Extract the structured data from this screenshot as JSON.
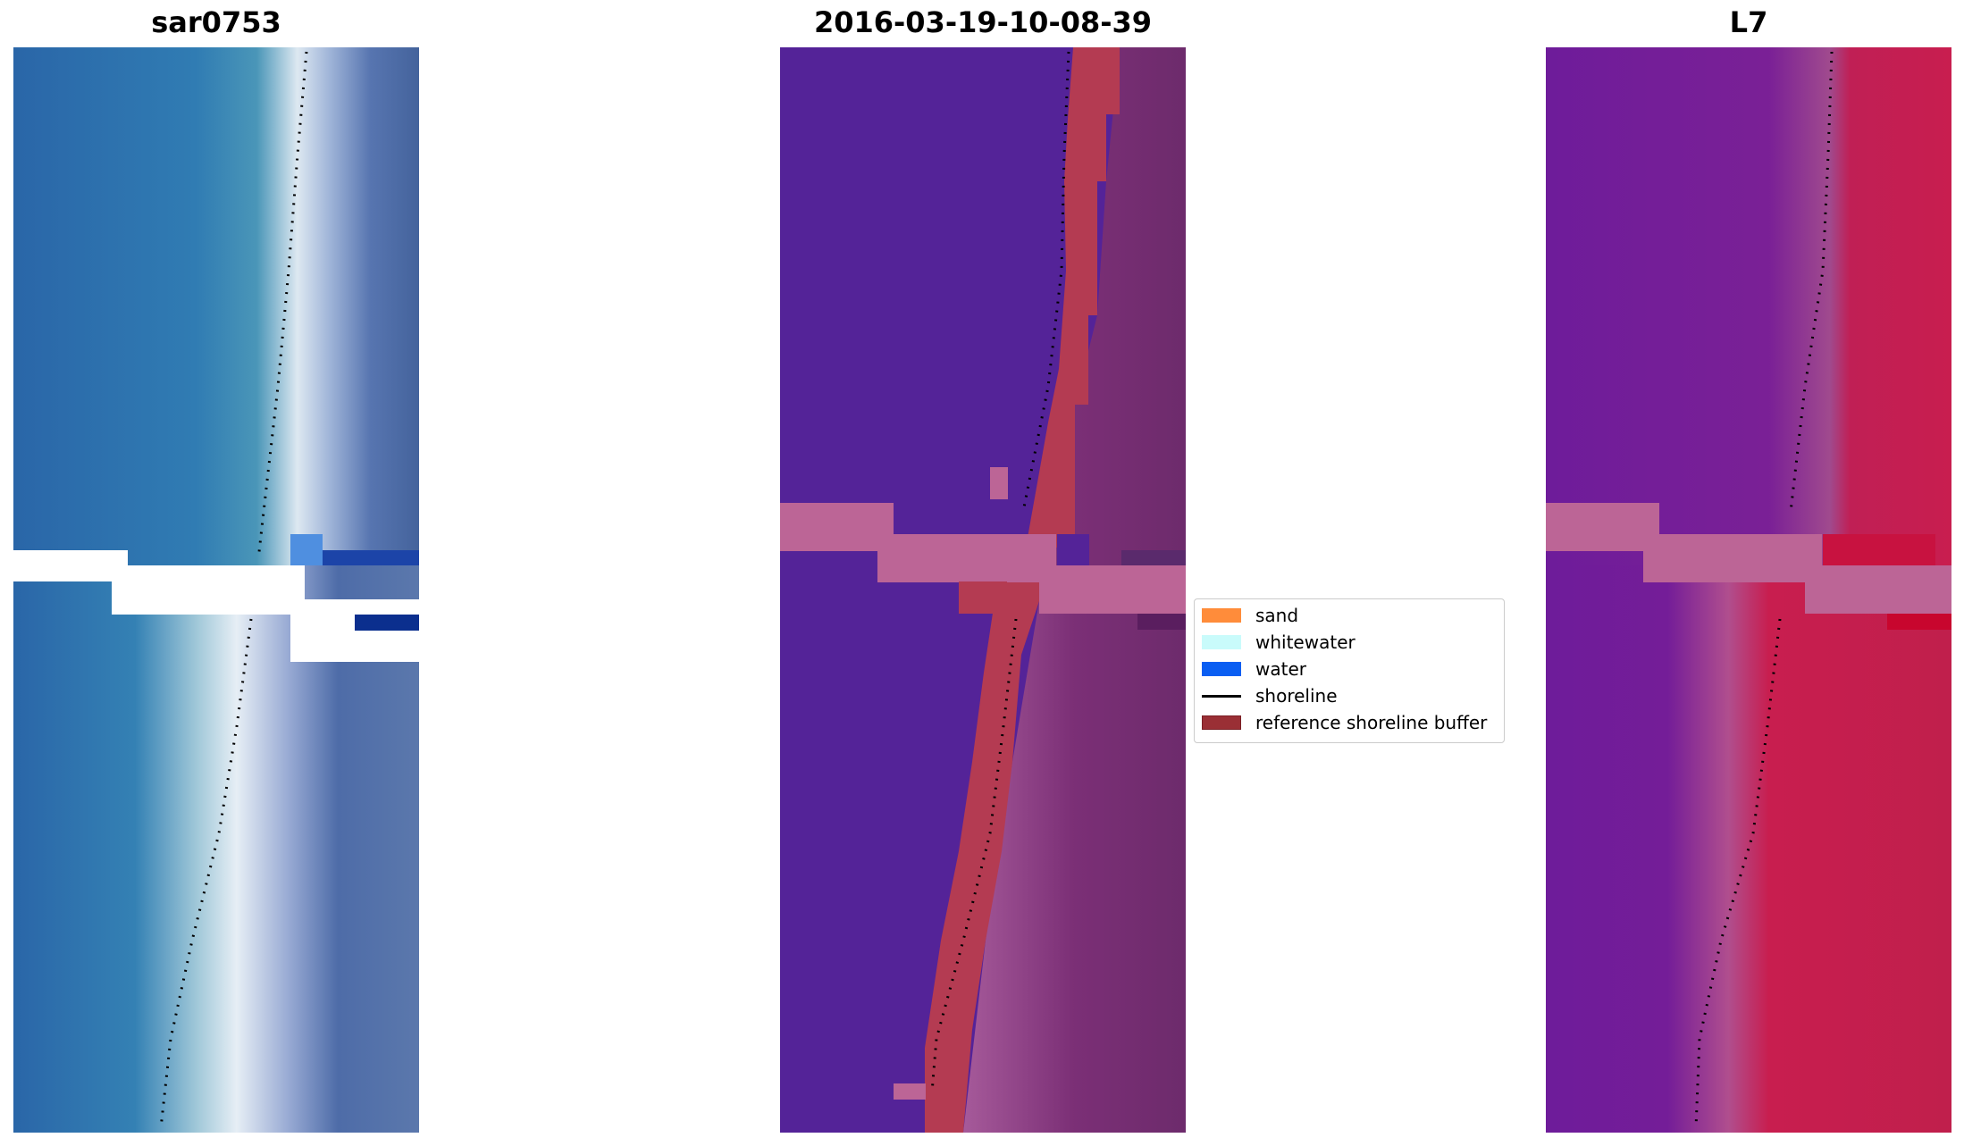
{
  "titles": {
    "rgb": "sar0753",
    "classification": "2016-03-19-10-08-39",
    "mndwi": "L7"
  },
  "legend": {
    "items": [
      {
        "label": "sand",
        "type": "patch",
        "color": "#ff8c3a"
      },
      {
        "label": "whitewater",
        "type": "patch",
        "color": "#c9fbfb"
      },
      {
        "label": "water",
        "type": "patch",
        "color": "#0a5ef2"
      },
      {
        "label": "shoreline",
        "type": "line",
        "color": "#000000"
      },
      {
        "label": "reference shoreline buffer",
        "type": "patch",
        "color": "#9a2f35"
      }
    ]
  },
  "colors": {
    "rgb_water": "#2a6fad",
    "rgb_shallow": "#3e8fb8",
    "rgb_surf": "#dbe6f0",
    "rgb_land": "#4766a0",
    "cls_background": "#542398",
    "cls_buffer": "#b43b52",
    "cls_land": "#7a2e74",
    "cls_band": "#bc6596",
    "mndwi_water": "#6e1c9a",
    "mndwi_land": "#c81e4f",
    "mndwi_band": "#bc6596"
  }
}
